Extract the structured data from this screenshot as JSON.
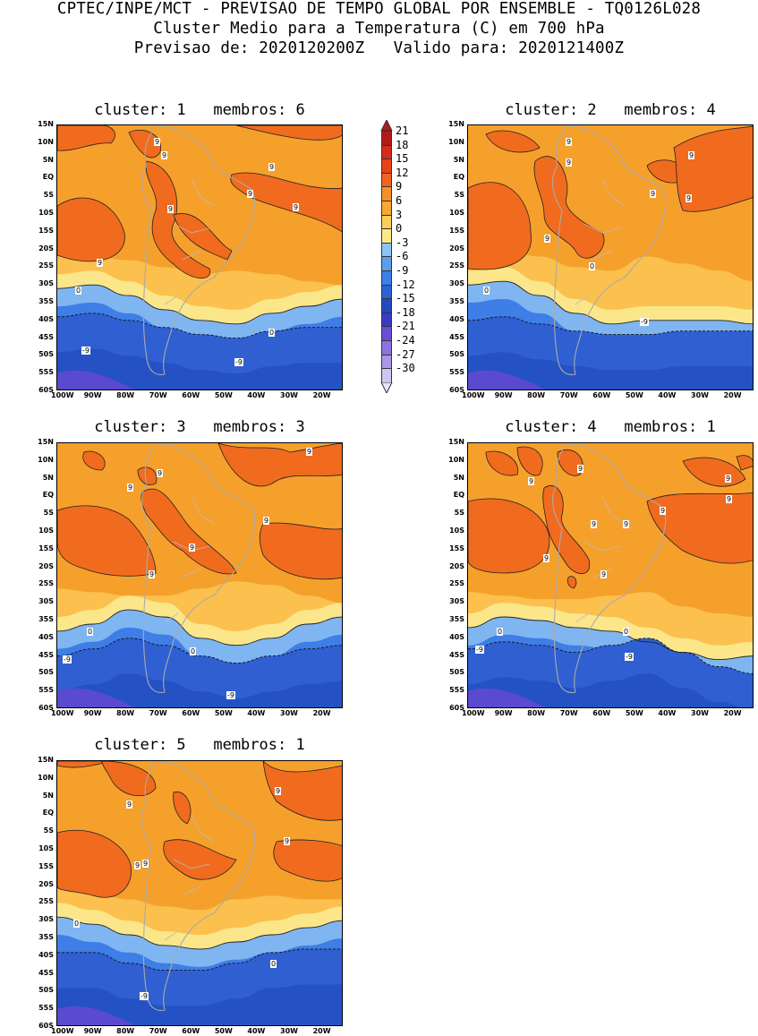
{
  "header": {
    "line1": "CPTEC/INPE/MCT - PREVISAO DE TEMPO GLOBAL POR ENSEMBLE - TQ0126L028",
    "line2": "Cluster Medio para a Temperatura (C) em 700 hPa",
    "line3": "Previsao de: 2020120200Z   Valido para: 2020121400Z"
  },
  "axes": {
    "lat": [
      "15N",
      "10N",
      "5N",
      "EQ",
      "5S",
      "10S",
      "15S",
      "20S",
      "25S",
      "30S",
      "35S",
      "40S",
      "45S",
      "50S",
      "55S",
      "60S"
    ],
    "lon": [
      "100W",
      "90W",
      "80W",
      "70W",
      "60W",
      "50W",
      "40W",
      "30W",
      "20W"
    ]
  },
  "colorbar": {
    "levels": [
      "21",
      "18",
      "15",
      "12",
      "9",
      "6",
      "3",
      "0",
      "-3",
      "-6",
      "-9",
      "-12",
      "-15",
      "-18",
      "-21",
      "-24",
      "-27",
      "-30"
    ],
    "colors": [
      "#b21a1a",
      "#d42b1e",
      "#e8421a",
      "#f0641e",
      "#f68f2a",
      "#f7a832",
      "#fbcf5a",
      "#fbe98a",
      "#8ec4f5",
      "#5a9ef0",
      "#3c7fe8",
      "#2a62d6",
      "#2448c0",
      "#3b3ac6",
      "#6a4fd6",
      "#8c72e2",
      "#ab96ea",
      "#cfc4f2"
    ]
  },
  "clusters": [
    {
      "title": "cluster: 1   membros: 6",
      "labels": [
        "9",
        "9",
        "9",
        "9",
        "9",
        "9",
        "9",
        "0",
        "0",
        "-9",
        "-9"
      ]
    },
    {
      "title": "cluster: 2   membros: 4",
      "labels": [
        "9",
        "9",
        "9",
        "9",
        "9",
        "9",
        "0",
        "0",
        "-9"
      ]
    },
    {
      "title": "cluster: 3   membros: 3",
      "labels": [
        "9",
        "9",
        "9",
        "9",
        "9",
        "9",
        "0",
        "0",
        "-9",
        "-9"
      ]
    },
    {
      "title": "cluster: 4   membros: 1",
      "labels": [
        "9",
        "9",
        "9",
        "9",
        "9",
        "9",
        "9",
        "9",
        "9",
        "0",
        "0",
        "-9",
        "-9"
      ]
    },
    {
      "title": "cluster: 5   membros: 1",
      "labels": [
        "9",
        "9",
        "9",
        "9",
        "9",
        "0",
        "0",
        "-9"
      ]
    }
  ]
}
